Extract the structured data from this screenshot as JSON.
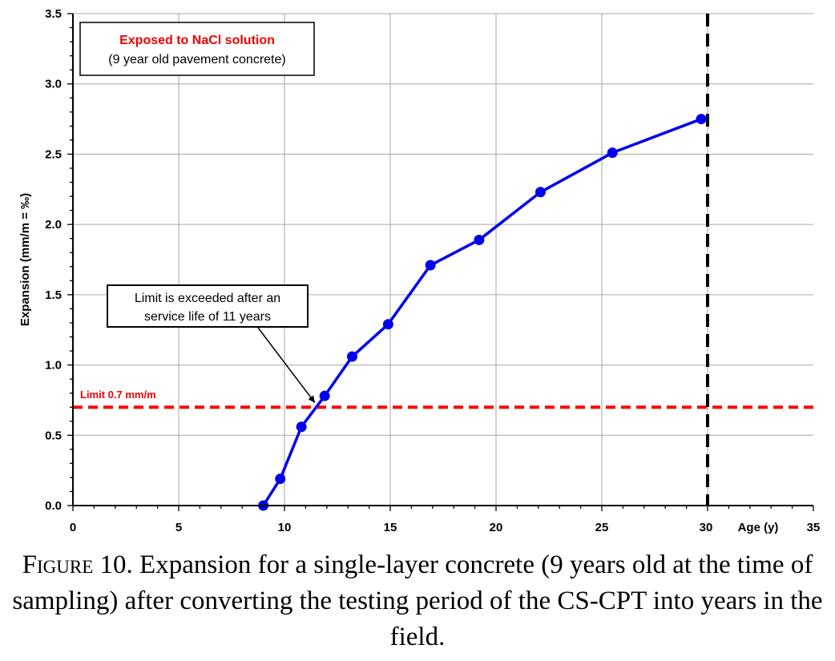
{
  "chart_data": {
    "type": "line",
    "ylabel": "Expansion (mm/m = ‰)",
    "xlabel": "Age (y)",
    "xlim": [
      0,
      35
    ],
    "ylim": [
      0,
      3.5
    ],
    "x_ticks": [
      0,
      5,
      10,
      15,
      20,
      25,
      30,
      35
    ],
    "y_ticks": [
      0.0,
      0.5,
      1.0,
      1.5,
      2.0,
      2.5,
      3.0,
      3.5
    ],
    "grid": true,
    "series": [
      {
        "color": "#0000ee",
        "x": [
          9.0,
          9.8,
          10.8,
          11.9,
          13.2,
          14.9,
          16.9,
          19.2,
          22.1,
          25.5,
          29.7
        ],
        "y": [
          0.0,
          0.19,
          0.56,
          0.78,
          1.06,
          1.29,
          1.71,
          1.89,
          2.23,
          2.51,
          2.75
        ]
      }
    ],
    "reference_lines": [
      {
        "orientation": "horizontal",
        "value": 0.7,
        "color": "#ff0000",
        "style": "dashed",
        "label": "Limit 0.7 mm/m"
      },
      {
        "orientation": "vertical",
        "value": 30,
        "color": "#000000",
        "style": "dashed"
      }
    ],
    "annotations": {
      "legend_box": {
        "line1": "Exposed to NaCl solution",
        "line1_color": "#ee0000",
        "line2": "(9 year old pavement concrete)"
      },
      "callout": {
        "line1": "Limit is exceeded after an",
        "line2": "service life of 11 years",
        "arrow_target": [
          11.5,
          0.7
        ]
      }
    }
  },
  "caption": {
    "label": "Figure",
    "text": " 10. Expansion for a single-layer concrete (9 years old at the time of sampling) after converting the testing period of the CS-CPT into years in the field."
  }
}
